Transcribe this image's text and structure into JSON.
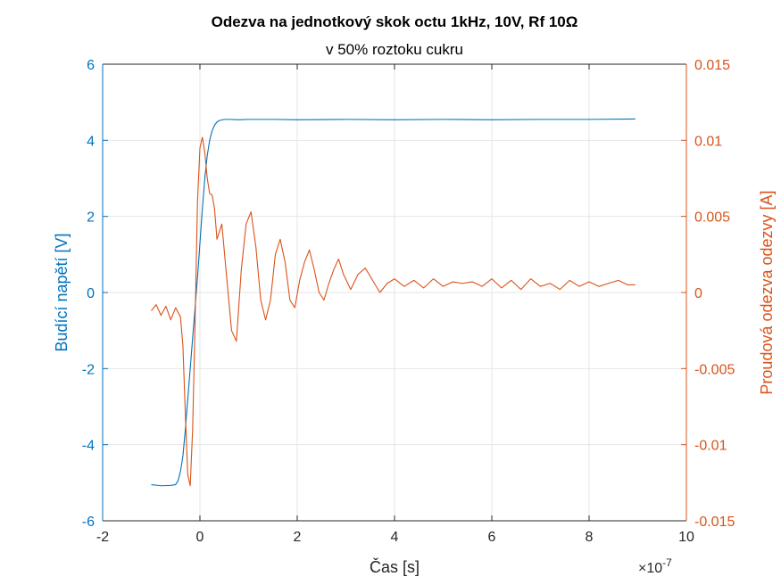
{
  "chart_data": {
    "type": "line",
    "title": "Odezva na jednotkový skok octu 1kHz, 10V, Rf 10Ω",
    "subtitle": "v 50% roztoku cukru",
    "xlabel": "Čas [s]",
    "x_exponent_label": "×10",
    "x_exponent_power": "-7",
    "ylabel_left": "Budící napětí [V]",
    "ylabel_right": "Proudová odezva odezvy [A]",
    "xlim": [
      -2,
      10
    ],
    "ylim_left": [
      -6,
      6
    ],
    "ylim_right": [
      -0.015,
      0.015
    ],
    "x_ticks": [
      "-2",
      "0",
      "2",
      "4",
      "6",
      "8",
      "10"
    ],
    "y_left_ticks": [
      "-6",
      "-4",
      "-2",
      "0",
      "2",
      "4",
      "6"
    ],
    "y_right_ticks": [
      "-0.015",
      "-0.01",
      "-0.005",
      "0",
      "0.005",
      "0.01",
      "0.015"
    ],
    "grid": true,
    "colors": {
      "left": "#0072BD",
      "right": "#D95319",
      "grid": "#e6e6e6",
      "axes": "#262626"
    },
    "series": [
      {
        "axis": "left",
        "x": [
          -1.0,
          -0.8,
          -0.6,
          -0.5,
          -0.45,
          -0.4,
          -0.35,
          -0.3,
          -0.25,
          -0.2,
          -0.15,
          -0.1,
          -0.05,
          0.0,
          0.05,
          0.1,
          0.15,
          0.2,
          0.25,
          0.3,
          0.35,
          0.4,
          0.5,
          0.6,
          0.8,
          1.0,
          1.5,
          2.0,
          3.0,
          4.0,
          5.0,
          6.0,
          7.0,
          8.0,
          8.95
        ],
        "y": [
          -5.05,
          -5.08,
          -5.07,
          -5.05,
          -4.95,
          -4.7,
          -4.3,
          -3.6,
          -2.8,
          -2.0,
          -1.2,
          -0.4,
          0.4,
          1.3,
          2.2,
          3.0,
          3.6,
          4.0,
          4.25,
          4.4,
          4.48,
          4.52,
          4.55,
          4.55,
          4.54,
          4.55,
          4.55,
          4.54,
          4.55,
          4.54,
          4.55,
          4.54,
          4.55,
          4.55,
          4.56
        ]
      },
      {
        "axis": "right",
        "x": [
          -1.0,
          -0.9,
          -0.8,
          -0.7,
          -0.6,
          -0.5,
          -0.4,
          -0.35,
          -0.3,
          -0.25,
          -0.2,
          -0.15,
          -0.1,
          -0.05,
          0.0,
          0.05,
          0.1,
          0.15,
          0.2,
          0.25,
          0.3,
          0.35,
          0.45,
          0.55,
          0.65,
          0.75,
          0.85,
          0.95,
          1.05,
          1.15,
          1.25,
          1.35,
          1.45,
          1.55,
          1.65,
          1.75,
          1.85,
          1.95,
          2.05,
          2.15,
          2.25,
          2.35,
          2.45,
          2.55,
          2.65,
          2.75,
          2.85,
          2.95,
          3.1,
          3.25,
          3.4,
          3.55,
          3.7,
          3.85,
          4.0,
          4.2,
          4.4,
          4.6,
          4.8,
          5.0,
          5.2,
          5.4,
          5.6,
          5.8,
          6.0,
          6.2,
          6.4,
          6.6,
          6.8,
          7.0,
          7.2,
          7.4,
          7.6,
          7.8,
          8.0,
          8.2,
          8.4,
          8.6,
          8.8,
          8.95
        ],
        "y": [
          -0.0012,
          -0.0008,
          -0.0015,
          -0.0009,
          -0.0018,
          -0.001,
          -0.0016,
          -0.0035,
          -0.008,
          -0.012,
          -0.0127,
          -0.009,
          -0.002,
          0.006,
          0.0095,
          0.0102,
          0.0092,
          0.0075,
          0.0065,
          0.0064,
          0.0055,
          0.0035,
          0.0045,
          0.001,
          -0.0025,
          -0.0032,
          0.0015,
          0.0045,
          0.0053,
          0.003,
          -0.0005,
          -0.0018,
          -0.0005,
          0.0025,
          0.0035,
          0.002,
          -0.0005,
          -0.001,
          0.0008,
          0.002,
          0.0028,
          0.0015,
          0.0,
          -0.0005,
          0.0006,
          0.0015,
          0.0022,
          0.0012,
          0.0002,
          0.0012,
          0.0016,
          0.0008,
          0.0,
          0.0006,
          0.0009,
          0.0004,
          0.0008,
          0.0003,
          0.0009,
          0.0004,
          0.0007,
          0.0006,
          0.0007,
          0.0004,
          0.0009,
          0.0003,
          0.0008,
          0.0002,
          0.0009,
          0.0004,
          0.0006,
          0.0002,
          0.0008,
          0.0004,
          0.0007,
          0.0004,
          0.0006,
          0.0008,
          0.0005,
          0.0005
        ]
      }
    ]
  }
}
